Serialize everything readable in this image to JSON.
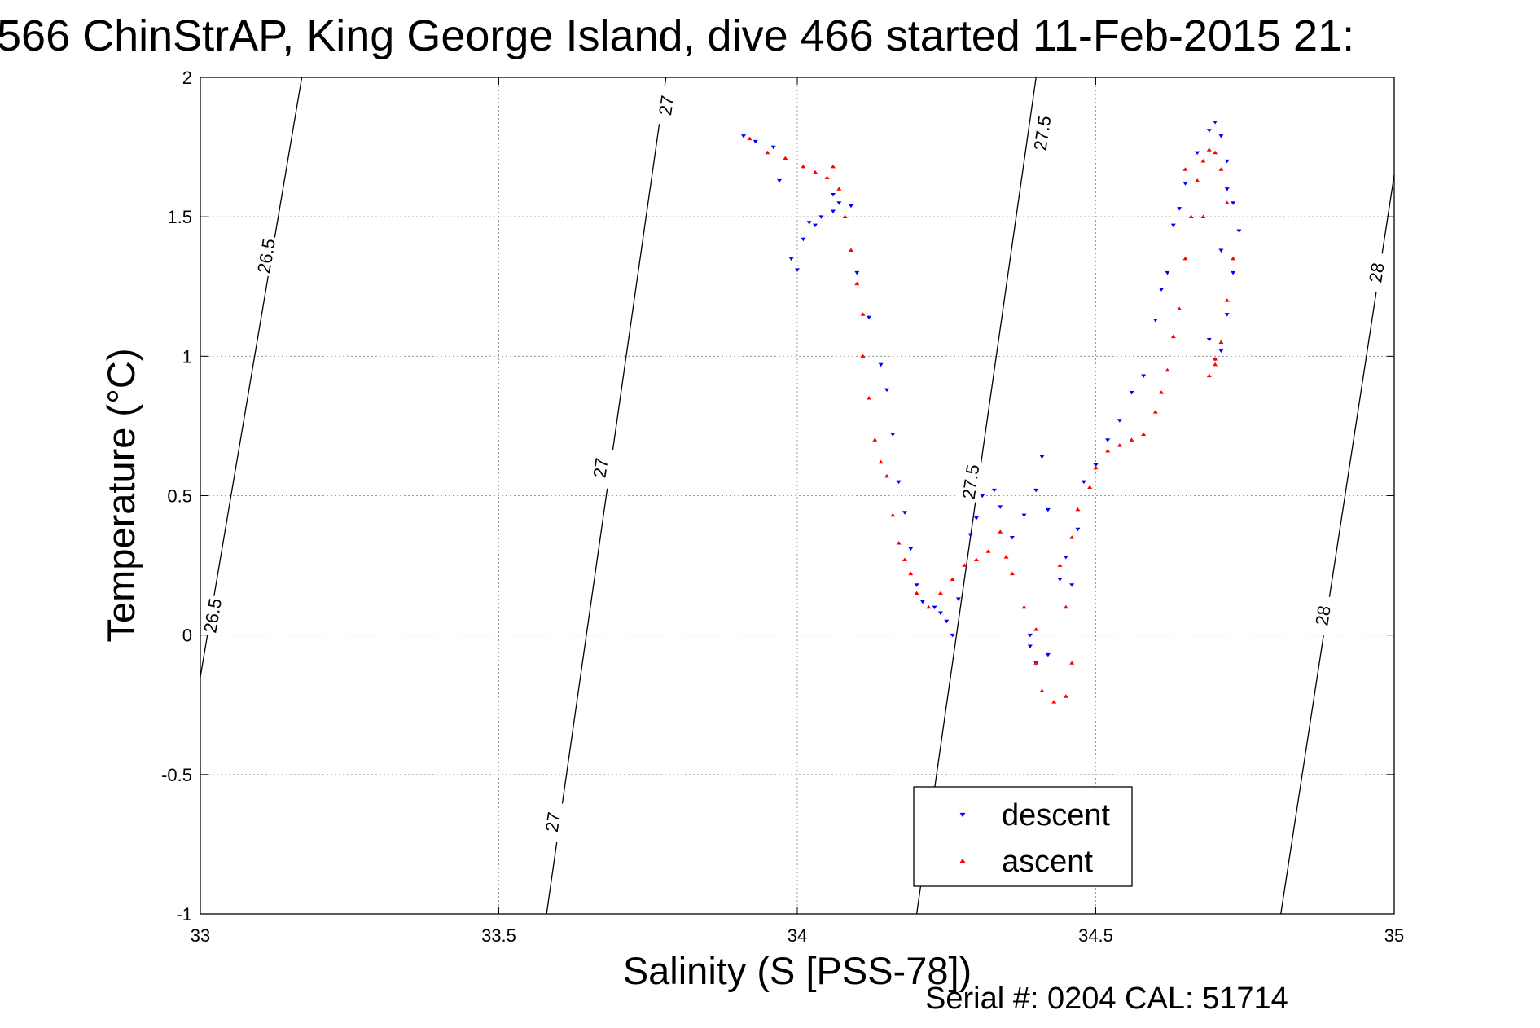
{
  "chart_data": {
    "type": "scatter",
    "title": "566 ChinStrAP, King George Island, dive 466 started 11-Feb-2015 21:",
    "xlabel": "Salinity (S [PSS-78])",
    "ylabel": "Temperature (°C)",
    "xlim": [
      33,
      35
    ],
    "ylim": [
      -1,
      2
    ],
    "xticks": [
      "33",
      "33.5",
      "34",
      "34.5",
      "35"
    ],
    "yticks": [
      "2",
      "1.5",
      "1",
      "0.5",
      "0",
      "-0.5",
      "-1"
    ],
    "grid": true,
    "legend_position": "lower-right",
    "footer": "Serial #: 0204  CAL: 51714",
    "colors": {
      "descent": "#0000ff",
      "ascent": "#ff0000",
      "contour": "#000000"
    },
    "contours": [
      {
        "label": "26.5",
        "points": [
          [
            33.0,
            -0.15
          ],
          [
            33.17,
            2.0
          ]
        ],
        "labels": [
          [
            33.02,
            0.07
          ],
          [
            33.11,
            1.36
          ]
        ]
      },
      {
        "label": "27",
        "points": [
          [
            33.58,
            -1.0
          ],
          [
            33.78,
            2.0
          ]
        ],
        "labels": [
          [
            33.59,
            -0.67
          ],
          [
            33.67,
            0.6
          ],
          [
            33.78,
            1.9
          ]
        ]
      },
      {
        "label": "27.5",
        "points": [
          [
            34.2,
            -1.0
          ],
          [
            34.4,
            2.0
          ]
        ],
        "labels": [
          [
            34.29,
            0.55
          ],
          [
            34.41,
            1.8
          ]
        ]
      },
      {
        "label": "28",
        "points": [
          [
            34.81,
            -1.0
          ],
          [
            35.0,
            1.65
          ]
        ],
        "labels": [
          [
            34.88,
            0.07
          ],
          [
            34.97,
            1.3
          ]
        ]
      }
    ],
    "series": [
      {
        "name": "descent",
        "marker": "triangle-down",
        "points": [
          [
            33.91,
            1.79
          ],
          [
            33.93,
            1.77
          ],
          [
            33.96,
            1.75
          ],
          [
            33.97,
            1.63
          ],
          [
            34.02,
            1.48
          ],
          [
            34.04,
            1.5
          ],
          [
            34.06,
            1.52
          ],
          [
            34.07,
            1.55
          ],
          [
            34.09,
            1.54
          ],
          [
            33.99,
            1.35
          ],
          [
            34.0,
            1.31
          ],
          [
            34.01,
            1.42
          ],
          [
            34.03,
            1.47
          ],
          [
            34.06,
            1.58
          ],
          [
            34.1,
            1.3
          ],
          [
            34.12,
            1.14
          ],
          [
            34.14,
            0.97
          ],
          [
            34.15,
            0.88
          ],
          [
            34.16,
            0.72
          ],
          [
            34.17,
            0.55
          ],
          [
            34.18,
            0.44
          ],
          [
            34.19,
            0.31
          ],
          [
            34.2,
            0.18
          ],
          [
            34.21,
            0.12
          ],
          [
            34.23,
            0.1
          ],
          [
            34.24,
            0.08
          ],
          [
            34.25,
            0.05
          ],
          [
            34.26,
            0.0
          ],
          [
            34.27,
            0.13
          ],
          [
            34.29,
            0.36
          ],
          [
            34.3,
            0.42
          ],
          [
            34.31,
            0.5
          ],
          [
            34.33,
            0.52
          ],
          [
            34.34,
            0.46
          ],
          [
            34.36,
            0.35
          ],
          [
            34.38,
            0.43
          ],
          [
            34.4,
            0.52
          ],
          [
            34.41,
            0.64
          ],
          [
            34.42,
            0.45
          ],
          [
            34.39,
            0.0
          ],
          [
            34.39,
            -0.04
          ],
          [
            34.4,
            -0.1
          ],
          [
            34.42,
            -0.07
          ],
          [
            34.44,
            0.2
          ],
          [
            34.45,
            0.28
          ],
          [
            34.46,
            0.18
          ],
          [
            34.47,
            0.38
          ],
          [
            34.48,
            0.55
          ],
          [
            34.5,
            0.61
          ],
          [
            34.52,
            0.7
          ],
          [
            34.54,
            0.77
          ],
          [
            34.56,
            0.87
          ],
          [
            34.58,
            0.93
          ],
          [
            34.6,
            1.13
          ],
          [
            34.61,
            1.24
          ],
          [
            34.62,
            1.3
          ],
          [
            34.63,
            1.47
          ],
          [
            34.64,
            1.53
          ],
          [
            34.65,
            1.62
          ],
          [
            34.67,
            1.73
          ],
          [
            34.69,
            1.81
          ],
          [
            34.7,
            1.84
          ],
          [
            34.71,
            1.79
          ],
          [
            34.72,
            1.7
          ],
          [
            34.73,
            1.55
          ],
          [
            34.74,
            1.45
          ],
          [
            34.73,
            1.3
          ],
          [
            34.72,
            1.15
          ],
          [
            34.71,
            1.02
          ],
          [
            34.7,
            0.99
          ],
          [
            34.69,
            1.06
          ],
          [
            34.71,
            1.38
          ],
          [
            34.72,
            1.6
          ]
        ]
      },
      {
        "name": "ascent",
        "marker": "triangle-up",
        "points": [
          [
            33.92,
            1.78
          ],
          [
            33.95,
            1.73
          ],
          [
            33.98,
            1.71
          ],
          [
            34.01,
            1.68
          ],
          [
            34.03,
            1.66
          ],
          [
            34.05,
            1.64
          ],
          [
            34.06,
            1.68
          ],
          [
            34.07,
            1.6
          ],
          [
            34.08,
            1.5
          ],
          [
            34.09,
            1.38
          ],
          [
            34.1,
            1.26
          ],
          [
            34.11,
            1.15
          ],
          [
            34.11,
            1.0
          ],
          [
            34.12,
            0.85
          ],
          [
            34.13,
            0.7
          ],
          [
            34.14,
            0.62
          ],
          [
            34.15,
            0.57
          ],
          [
            34.16,
            0.43
          ],
          [
            34.17,
            0.33
          ],
          [
            34.18,
            0.27
          ],
          [
            34.19,
            0.22
          ],
          [
            34.2,
            0.15
          ],
          [
            34.22,
            0.1
          ],
          [
            34.24,
            0.15
          ],
          [
            34.26,
            0.2
          ],
          [
            34.28,
            0.25
          ],
          [
            34.3,
            0.27
          ],
          [
            34.32,
            0.3
          ],
          [
            34.34,
            0.37
          ],
          [
            34.35,
            0.28
          ],
          [
            34.36,
            0.22
          ],
          [
            34.38,
            0.1
          ],
          [
            34.4,
            0.02
          ],
          [
            34.4,
            -0.1
          ],
          [
            34.41,
            -0.2
          ],
          [
            34.43,
            -0.24
          ],
          [
            34.45,
            -0.22
          ],
          [
            34.46,
            -0.1
          ],
          [
            34.45,
            0.1
          ],
          [
            34.44,
            0.25
          ],
          [
            34.46,
            0.35
          ],
          [
            34.47,
            0.45
          ],
          [
            34.49,
            0.53
          ],
          [
            34.5,
            0.6
          ],
          [
            34.52,
            0.66
          ],
          [
            34.54,
            0.68
          ],
          [
            34.56,
            0.7
          ],
          [
            34.58,
            0.72
          ],
          [
            34.6,
            0.8
          ],
          [
            34.61,
            0.87
          ],
          [
            34.62,
            0.95
          ],
          [
            34.63,
            1.07
          ],
          [
            34.64,
            1.17
          ],
          [
            34.65,
            1.35
          ],
          [
            34.66,
            1.5
          ],
          [
            34.67,
            1.63
          ],
          [
            34.68,
            1.7
          ],
          [
            34.69,
            1.74
          ],
          [
            34.7,
            1.73
          ],
          [
            34.71,
            1.67
          ],
          [
            34.72,
            1.55
          ],
          [
            34.73,
            1.35
          ],
          [
            34.72,
            1.2
          ],
          [
            34.71,
            1.05
          ],
          [
            34.7,
            0.97
          ],
          [
            34.69,
            0.93
          ],
          [
            34.7,
            0.99
          ],
          [
            34.68,
            1.5
          ],
          [
            34.65,
            1.67
          ]
        ]
      }
    ],
    "legend": [
      {
        "name": "descent",
        "marker": "triangle-down"
      },
      {
        "name": "ascent",
        "marker": "triangle-up"
      }
    ]
  }
}
